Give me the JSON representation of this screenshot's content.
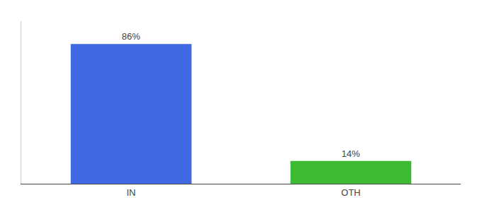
{
  "chart_data": {
    "type": "bar",
    "categories": [
      "IN",
      "OTH"
    ],
    "values": [
      86,
      14
    ],
    "value_labels": [
      "86%",
      "14%"
    ],
    "colors": [
      "#4169e1",
      "#3dbb35"
    ],
    "ylim": [
      0,
      100
    ],
    "data_labels": true,
    "tick_labels": "x",
    "grid": false
  }
}
